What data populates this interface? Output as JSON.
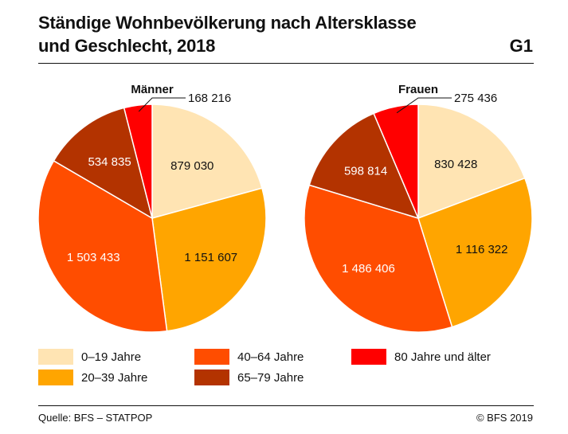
{
  "header": {
    "title_line1": "Ständige Wohnbevölkerung nach Altersklasse",
    "title_line2": "und Geschlecht, 2018",
    "badge": "G1"
  },
  "footer": {
    "source": "Quelle: BFS – STATPOP",
    "copyright": "© BFS 2019"
  },
  "chart_data": [
    {
      "type": "pie",
      "title": "Männer",
      "categories": [
        "0–19 Jahre",
        "20–39 Jahre",
        "40–64 Jahre",
        "65–79 Jahre",
        "80 Jahre und älter"
      ],
      "values": [
        879030,
        1151607,
        1503433,
        534835,
        168216
      ],
      "labels": [
        "879 030",
        "1 151 607",
        "1 503 433",
        "534 835",
        "168 216"
      ],
      "colors": [
        "#FFE4B3",
        "#FFA500",
        "#FF4D00",
        "#B33300",
        "#FF0000"
      ],
      "label_colors": [
        "#111111",
        "#111111",
        "#ffffff",
        "#ffffff",
        "#111111"
      ]
    },
    {
      "type": "pie",
      "title": "Frauen",
      "categories": [
        "0–19 Jahre",
        "20–39 Jahre",
        "40–64 Jahre",
        "65–79 Jahre",
        "80 Jahre und älter"
      ],
      "values": [
        830428,
        1116322,
        1486406,
        598814,
        275436
      ],
      "labels": [
        "830 428",
        "1 116 322",
        "1 486 406",
        "598 814",
        "275 436"
      ],
      "colors": [
        "#FFE4B3",
        "#FFA500",
        "#FF4D00",
        "#B33300",
        "#FF0000"
      ],
      "label_colors": [
        "#111111",
        "#111111",
        "#ffffff",
        "#ffffff",
        "#111111"
      ]
    }
  ],
  "legend": {
    "items": [
      {
        "label": "0–19 Jahre",
        "color": "#FFE4B3"
      },
      {
        "label": "20–39 Jahre",
        "color": "#FFA500"
      },
      {
        "label": "40–64 Jahre",
        "color": "#FF4D00"
      },
      {
        "label": "65–79 Jahre",
        "color": "#B33300"
      },
      {
        "label": "80 Jahre und älter",
        "color": "#FF0000"
      }
    ]
  }
}
